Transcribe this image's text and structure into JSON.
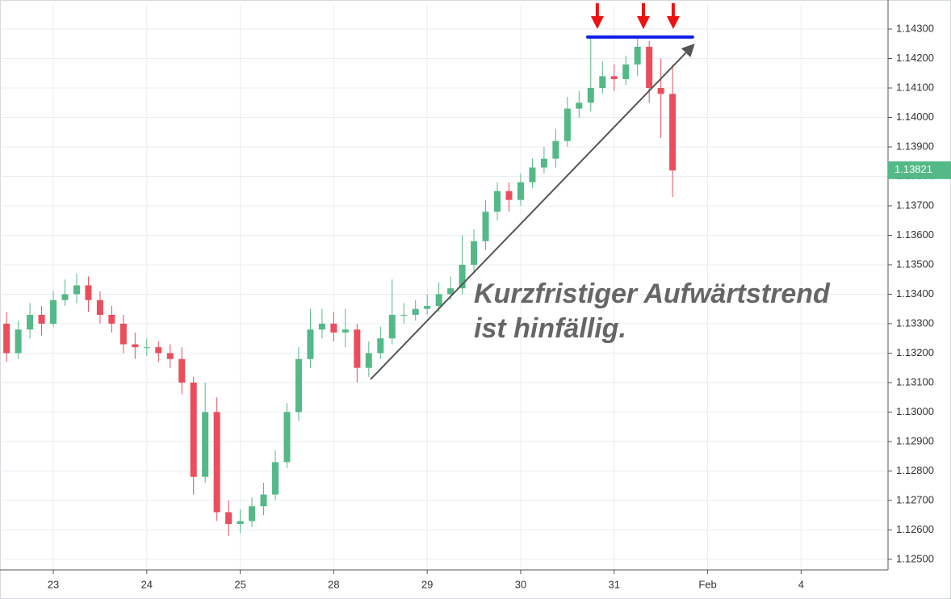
{
  "chart_data": {
    "type": "candlestick",
    "x": [
      -0.5,
      -0.375,
      -0.25,
      -0.125,
      0,
      0.125,
      0.25,
      0.375,
      0.5,
      0.625,
      0.75,
      0.875,
      1,
      1.125,
      1.25,
      1.375,
      1.5,
      1.625,
      1.75,
      1.875,
      2,
      2.125,
      2.25,
      2.375,
      2.5,
      2.625,
      2.75,
      2.875,
      3,
      3.125,
      3.25,
      3.375,
      3.5,
      3.625,
      3.75,
      3.875,
      4,
      4.125,
      4.25,
      4.375,
      4.5,
      4.625,
      4.75,
      4.875,
      5,
      5.125,
      5.25,
      5.375,
      5.5,
      5.625,
      5.75,
      5.875,
      6,
      6.125,
      6.25,
      6.375,
      6.5,
      6.625
    ],
    "open": [
      1.133,
      1.132,
      1.1328,
      1.1333,
      1.133,
      1.1338,
      1.134,
      1.1343,
      1.1338,
      1.1333,
      1.133,
      1.1323,
      1.1322,
      1.1322,
      1.132,
      1.1318,
      1.131,
      1.1278,
      1.13,
      1.1266,
      1.1262,
      1.1263,
      1.1268,
      1.1272,
      1.1283,
      1.13,
      1.1318,
      1.1328,
      1.133,
      1.1327,
      1.1328,
      1.1315,
      1.132,
      1.1325,
      1.1333,
      1.1333,
      1.1335,
      1.1336,
      1.134,
      1.1342,
      1.135,
      1.1358,
      1.1368,
      1.1375,
      1.1372,
      1.1378,
      1.1383,
      1.1386,
      1.1392,
      1.1403,
      1.1405,
      1.141,
      1.1414,
      1.1413,
      1.1418,
      1.1424,
      1.141,
      1.1408
    ],
    "high": [
      1.1334,
      1.1331,
      1.1337,
      1.1336,
      1.1341,
      1.1345,
      1.1347,
      1.1346,
      1.1341,
      1.1336,
      1.1333,
      1.1327,
      1.1325,
      1.1324,
      1.1323,
      1.1322,
      1.1312,
      1.131,
      1.1305,
      1.127,
      1.1267,
      1.1271,
      1.1276,
      1.1287,
      1.1303,
      1.1322,
      1.1335,
      1.1335,
      1.1334,
      1.1335,
      1.133,
      1.1324,
      1.1329,
      1.1345,
      1.1337,
      1.1338,
      1.134,
      1.1344,
      1.1346,
      1.136,
      1.1362,
      1.1372,
      1.1378,
      1.1378,
      1.1381,
      1.1386,
      1.139,
      1.1396,
      1.1407,
      1.1409,
      1.1427,
      1.1419,
      1.1418,
      1.1421,
      1.1427,
      1.1426,
      1.142,
      1.1418
    ],
    "low": [
      1.1317,
      1.1318,
      1.1325,
      1.1326,
      1.1329,
      1.1336,
      1.1337,
      1.1334,
      1.133,
      1.1327,
      1.132,
      1.1318,
      1.1319,
      1.1317,
      1.1315,
      1.1306,
      1.1272,
      1.1276,
      1.1263,
      1.1258,
      1.1259,
      1.1261,
      1.1265,
      1.127,
      1.1281,
      1.1297,
      1.1315,
      1.1325,
      1.1324,
      1.1322,
      1.131,
      1.1312,
      1.1318,
      1.1323,
      1.133,
      1.1331,
      1.1333,
      1.1334,
      1.1338,
      1.134,
      1.1347,
      1.1355,
      1.1365,
      1.1368,
      1.137,
      1.1376,
      1.1381,
      1.1383,
      1.139,
      1.14,
      1.1402,
      1.1408,
      1.1409,
      1.1411,
      1.1414,
      1.1405,
      1.1393,
      1.1373
    ],
    "close": [
      1.132,
      1.1328,
      1.1333,
      1.133,
      1.1338,
      1.134,
      1.1343,
      1.1338,
      1.1333,
      1.133,
      1.1323,
      1.1322,
      1.1322,
      1.132,
      1.1318,
      1.131,
      1.1278,
      1.13,
      1.1266,
      1.1262,
      1.1263,
      1.1268,
      1.1272,
      1.1283,
      1.13,
      1.1318,
      1.1328,
      1.133,
      1.1327,
      1.1328,
      1.1315,
      1.132,
      1.1325,
      1.1333,
      1.1333,
      1.1335,
      1.1336,
      1.134,
      1.1342,
      1.135,
      1.1358,
      1.1368,
      1.1375,
      1.1372,
      1.1378,
      1.1383,
      1.1386,
      1.1392,
      1.1403,
      1.1405,
      1.141,
      1.1414,
      1.1413,
      1.1418,
      1.1424,
      1.141,
      1.1408,
      1.1382
    ],
    "up_color": "#53b987",
    "down_color": "#eb4d5c",
    "xlim": [
      -0.553,
      8.93
    ],
    "ylim": [
      1.12464,
      1.14385
    ],
    "xticks": [
      {
        "value": 0,
        "label": "23"
      },
      {
        "value": 1,
        "label": "24"
      },
      {
        "value": 2,
        "label": "25"
      },
      {
        "value": 3,
        "label": "28"
      },
      {
        "value": 4,
        "label": "29"
      },
      {
        "value": 5,
        "label": "30"
      },
      {
        "value": 6,
        "label": "31"
      },
      {
        "value": 7,
        "label": "Feb"
      },
      {
        "value": 8,
        "label": "4"
      }
    ],
    "yticks": [
      {
        "value": 1.125,
        "label": "1.12500"
      },
      {
        "value": 1.126,
        "label": "1.12600"
      },
      {
        "value": 1.127,
        "label": "1.12700"
      },
      {
        "value": 1.128,
        "label": "1.12800"
      },
      {
        "value": 1.129,
        "label": "1.12900"
      },
      {
        "value": 1.13,
        "label": "1.13000"
      },
      {
        "value": 1.131,
        "label": "1.13100"
      },
      {
        "value": 1.132,
        "label": "1.13200"
      },
      {
        "value": 1.133,
        "label": "1.13300"
      },
      {
        "value": 1.134,
        "label": "1.13400"
      },
      {
        "value": 1.135,
        "label": "1.13500"
      },
      {
        "value": 1.136,
        "label": "1.13600"
      },
      {
        "value": 1.137,
        "label": "1.13700"
      },
      {
        "value": 1.138,
        "label": "1.13800"
      },
      {
        "value": 1.139,
        "label": "1.13900"
      },
      {
        "value": 1.14,
        "label": "1.14000"
      },
      {
        "value": 1.141,
        "label": "1.14100"
      },
      {
        "value": 1.142,
        "label": "1.14200"
      },
      {
        "value": 1.143,
        "label": "1.14300"
      }
    ],
    "grid": true,
    "last_price": 1.13821,
    "trendline": {
      "x": [
        3.394,
        6.839
      ],
      "y": [
        1.13111,
        1.14243
      ],
      "color": "#555555"
    },
    "resistance": {
      "x": [
        5.717,
        6.839
      ],
      "y": [
        1.14273,
        1.14273
      ],
      "color": "#1020e8"
    },
    "arrows": {
      "x": [
        5.82,
        6.313,
        6.632
      ],
      "color": "#ee1111"
    },
    "annotation": [
      "Kurzfristiger Aufwärtstrend",
      "ist hinfällig."
    ]
  }
}
